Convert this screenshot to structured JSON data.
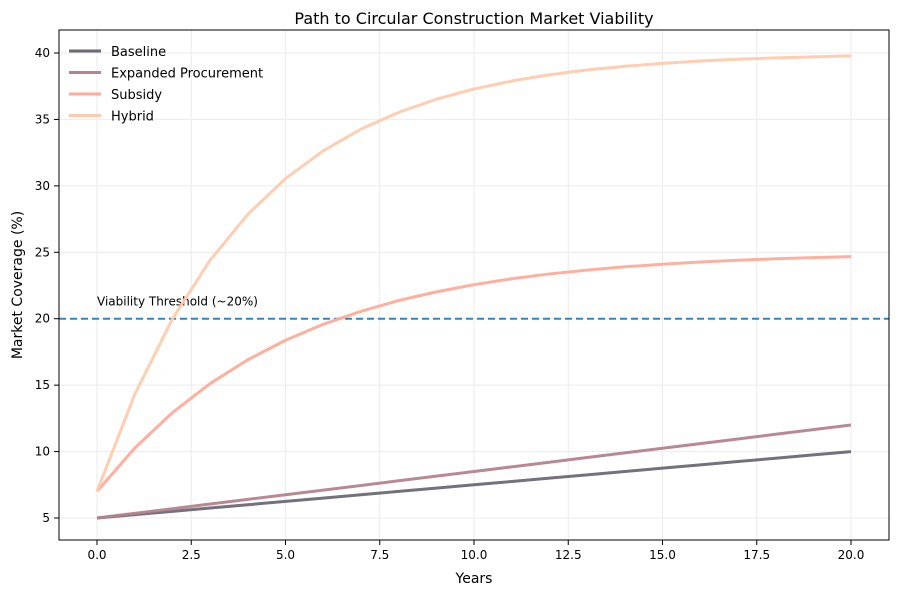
{
  "chart_data": {
    "type": "line",
    "title": "Path to Circular Construction Market Viability",
    "xlabel": "Years",
    "ylabel": "Market Coverage (%)",
    "xlim": [
      -1,
      21
    ],
    "ylim": [
      3.4,
      41.4
    ],
    "xticks": [
      "0.0",
      "2.5",
      "5.0",
      "7.5",
      "10.0",
      "12.5",
      "15.0",
      "17.5",
      "20.0"
    ],
    "yticks": [
      "5",
      "10",
      "15",
      "20",
      "25",
      "30",
      "35",
      "40"
    ],
    "grid": true,
    "legend": "top-left",
    "x": [
      0,
      1,
      2,
      3,
      4,
      5,
      6,
      7,
      8,
      9,
      10,
      11,
      12,
      13,
      14,
      15,
      16,
      17,
      18,
      19,
      20
    ],
    "series": [
      {
        "name": "Baseline",
        "color": "#6d6875",
        "values": [
          5,
          5.25,
          5.5,
          5.75,
          6,
          6.25,
          6.5,
          6.75,
          7,
          7.25,
          7.5,
          7.75,
          8,
          8.25,
          8.5,
          8.75,
          9,
          9.25,
          9.5,
          9.75,
          10
        ]
      },
      {
        "name": "Expanded Procurement",
        "color": "#b5838d",
        "values": [
          5,
          5.35,
          5.7,
          6.05,
          6.4,
          6.75,
          7.1,
          7.45,
          7.8,
          8.15,
          8.5,
          8.85,
          9.2,
          9.55,
          9.9,
          10.25,
          10.6,
          10.95,
          11.3,
          11.65,
          12
        ]
      },
      {
        "name": "Subsidy",
        "color": "#ffab99",
        "values": [
          7,
          10.26,
          12.93,
          15.12,
          16.91,
          18.38,
          19.58,
          20.56,
          21.37,
          22.02,
          22.56,
          23.01,
          23.37,
          23.66,
          23.91,
          24.1,
          24.27,
          24.4,
          24.51,
          24.6,
          24.67
        ]
      },
      {
        "name": "Hybrid",
        "color": "#ffcaad",
        "values": [
          7,
          14.3,
          19.98,
          24.41,
          27.86,
          30.55,
          32.64,
          34.27,
          35.53,
          36.52,
          37.29,
          37.89,
          38.36,
          38.72,
          39,
          39.22,
          39.4,
          39.53,
          39.63,
          39.71,
          39.78
        ]
      }
    ],
    "threshold": {
      "value": 20,
      "label": "Viability Threshold (~20%)",
      "color": "#2f86c6",
      "style": "dashed"
    }
  }
}
